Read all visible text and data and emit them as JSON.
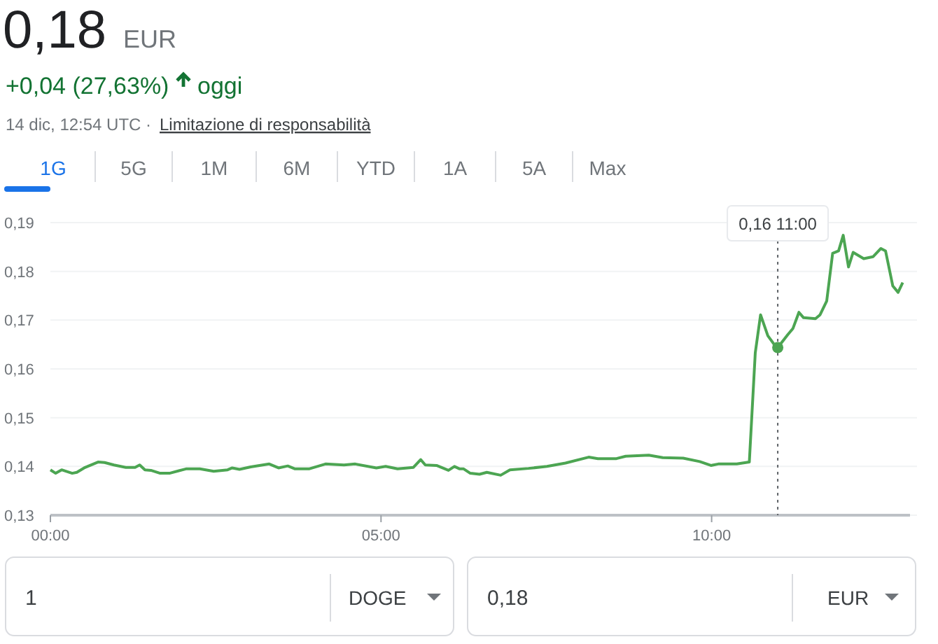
{
  "chart_data": {
    "type": "line",
    "title": "0,18",
    "annotations": [
      "EUR",
      "+0,04 (27,63%)",
      "oggi",
      "14 dic, 12:54 UTC ·",
      "Limitazione di responsabilità",
      "1G",
      "5G",
      "1M",
      "6M",
      "YTD",
      "1A",
      "5A",
      "Max",
      "1",
      "DOGE",
      "0,18",
      "EUR"
    ],
    "ref_lines": [
      {
        "axis": "x",
        "value": 11,
        "label": "0,16 11:00",
        "color": "#5f6368",
        "line_style": "dotted"
      }
    ],
    "x": [
      0,
      0.08,
      0.17,
      0.33,
      0.4,
      0.51,
      0.72,
      0.82,
      0.96,
      1.14,
      1.28,
      1.35,
      1.43,
      1.52,
      1.66,
      1.8,
      2.05,
      2.26,
      2.47,
      2.68,
      2.75,
      2.86,
      3.03,
      3.31,
      3.45,
      3.59,
      3.7,
      3.91,
      4.16,
      4.44,
      4.61,
      4.93,
      5.07,
      5.25,
      5.49,
      5.6,
      5.67,
      5.84,
      6.02,
      6.11,
      6.19,
      6.25,
      6.35,
      6.49,
      6.6,
      6.81,
      6.95,
      7.23,
      7.51,
      7.79,
      8.14,
      8.28,
      8.56,
      8.7,
      9.05,
      9.26,
      9.57,
      9.82,
      9.99,
      10.1,
      10.38,
      10.57,
      10.66,
      10.74,
      10.85,
      10.99,
      11.15,
      11.23,
      11.32,
      11.39,
      11.57,
      11.64,
      11.74,
      11.83,
      11.92,
      11.99,
      12.07,
      12.14,
      12.3,
      12.44,
      12.56,
      12.63,
      12.74,
      12.82,
      12.89
    ],
    "series": [
      {
        "color": "#4ca552",
        "values": [
          0.1393,
          0.1386,
          0.1393,
          0.1386,
          0.1388,
          0.1397,
          0.1409,
          0.1408,
          0.1403,
          0.1398,
          0.1398,
          0.1403,
          0.1393,
          0.1392,
          0.1386,
          0.1386,
          0.1395,
          0.1395,
          0.139,
          0.1393,
          0.1397,
          0.1394,
          0.1399,
          0.1405,
          0.1397,
          0.1401,
          0.1395,
          0.1395,
          0.1405,
          0.1403,
          0.1405,
          0.1397,
          0.14,
          0.1395,
          0.1398,
          0.1414,
          0.1403,
          0.1402,
          0.1392,
          0.14,
          0.1395,
          0.1395,
          0.1386,
          0.1384,
          0.1388,
          0.1382,
          0.1393,
          0.1396,
          0.14,
          0.1407,
          0.1419,
          0.1416,
          0.1416,
          0.1421,
          0.1423,
          0.1418,
          0.1417,
          0.141,
          0.1402,
          0.1405,
          0.1405,
          0.1409,
          0.1633,
          0.1711,
          0.1668,
          0.1642,
          0.167,
          0.1683,
          0.1716,
          0.1705,
          0.1703,
          0.1711,
          0.1739,
          0.1837,
          0.1842,
          0.1874,
          0.1809,
          0.1839,
          0.1826,
          0.183,
          0.1847,
          0.1842,
          0.177,
          0.1757,
          0.1777
        ]
      }
    ],
    "xlim": [
      0,
      13
    ],
    "xticks": [
      {
        "value": 0,
        "label": "00:00"
      },
      {
        "value": 5,
        "label": "05:00"
      },
      {
        "value": 10,
        "label": "10:00"
      }
    ],
    "ylim": [
      0.13,
      0.19
    ],
    "yticks": [
      {
        "value": 0.13,
        "label": "0,13"
      },
      {
        "value": 0.14,
        "label": "0,14"
      },
      {
        "value": 0.15,
        "label": "0,15"
      },
      {
        "value": 0.16,
        "label": "0,16"
      },
      {
        "value": 0.17,
        "label": "0,17"
      },
      {
        "value": 0.18,
        "label": "0,18"
      },
      {
        "value": 0.19,
        "label": "0,19"
      }
    ],
    "grid": "y",
    "marker": "none",
    "line_style": "solid"
  }
}
